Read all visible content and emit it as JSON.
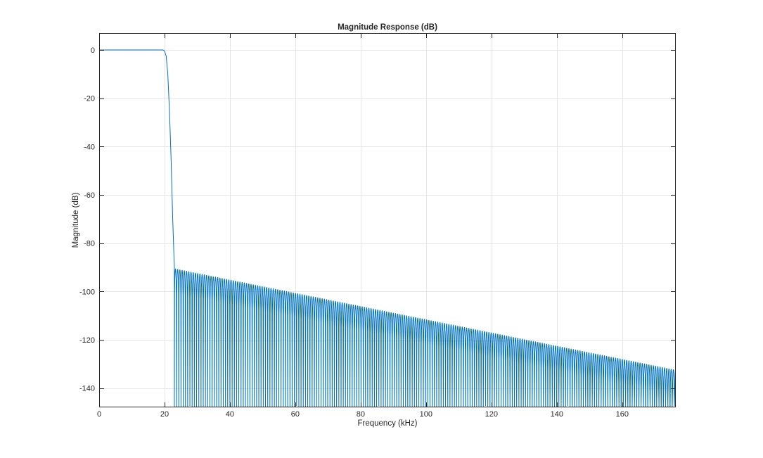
{
  "chart_data": {
    "type": "line",
    "title": "Magnitude Response (dB)",
    "xlabel": "Frequency (kHz)",
    "ylabel": "Magnitude (dB)",
    "xlim": [
      0,
      176.4
    ],
    "ylim": [
      -148,
      7
    ],
    "x_ticks": [
      0,
      20,
      40,
      60,
      80,
      100,
      120,
      140,
      160
    ],
    "y_ticks": [
      0,
      -20,
      -40,
      -60,
      -80,
      -100,
      -120,
      -140
    ],
    "x_tick_labels": [
      "0",
      "20",
      "40",
      "60",
      "80",
      "100",
      "120",
      "140",
      "160"
    ],
    "y_tick_labels": [
      "0",
      "-20",
      "-40",
      "-60",
      "-80",
      "-100",
      "-120",
      "-140"
    ],
    "grid": true,
    "legend": "none",
    "colors": {
      "series": "#0072bd",
      "grid": "#e6e6e6",
      "axes": "#262626"
    },
    "series": [
      {
        "passband_edge_khz": 20,
        "passband_level_db": 0,
        "transition_points": [
          [
            19.5,
            0
          ],
          [
            20.0,
            -0.4
          ],
          [
            20.5,
            -2.5
          ],
          [
            21.0,
            -10
          ],
          [
            21.5,
            -25
          ],
          [
            22.0,
            -45
          ],
          [
            22.5,
            -70
          ],
          [
            23.0,
            -90
          ]
        ],
        "stopband_start_khz": 23,
        "stopband_envelope": [
          [
            23,
            -90.5
          ],
          [
            176.4,
            -132.5
          ]
        ],
        "stopband_lobe_spacing_khz": 0.68
      }
    ]
  }
}
